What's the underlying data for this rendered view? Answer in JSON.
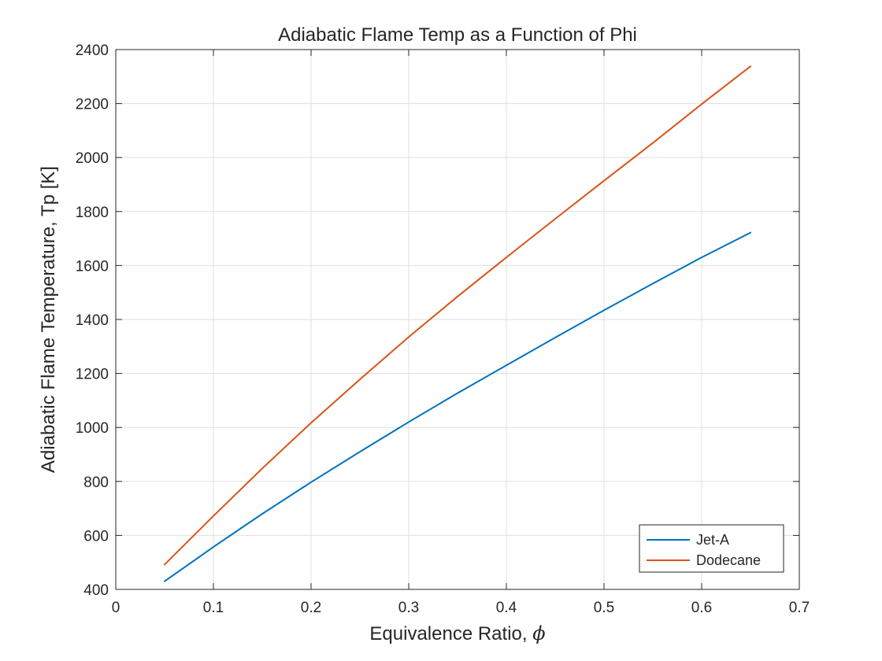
{
  "chart_data": {
    "type": "line",
    "title": "Adiabatic Flame Temp as a Function of Phi",
    "xlabel_prefix": "Equivalence Ratio, ",
    "xlabel_symbol": "ϕ",
    "ylabel": "Adiabatic Flame Temperature, Tp [K]",
    "xlim": [
      0,
      0.7
    ],
    "ylim": [
      400,
      2400
    ],
    "xticks": [
      0,
      0.1,
      0.2,
      0.3,
      0.4,
      0.5,
      0.6,
      0.7
    ],
    "xtick_labels": [
      "0",
      "0.1",
      "0.2",
      "0.3",
      "0.4",
      "0.5",
      "0.6",
      "0.7"
    ],
    "yticks": [
      400,
      600,
      800,
      1000,
      1200,
      1400,
      1600,
      1800,
      2000,
      2200,
      2400
    ],
    "ytick_labels": [
      "400",
      "600",
      "800",
      "1000",
      "1200",
      "1400",
      "1600",
      "1800",
      "2000",
      "2200",
      "2400"
    ],
    "grid": true,
    "legend_position": "bottom-right",
    "series": [
      {
        "name": "Jet-A",
        "color": "#0072BD",
        "x": [
          0.05,
          0.1,
          0.15,
          0.2,
          0.25,
          0.3,
          0.35,
          0.4,
          0.45,
          0.5,
          0.55,
          0.6,
          0.65
        ],
        "y": [
          430,
          557,
          680,
          797,
          910,
          1020,
          1127,
          1230,
          1333,
          1434,
          1533,
          1630,
          1722
        ]
      },
      {
        "name": "Dodecane",
        "color": "#D95319",
        "x": [
          0.05,
          0.1,
          0.15,
          0.2,
          0.25,
          0.3,
          0.35,
          0.4,
          0.45,
          0.5,
          0.55,
          0.6,
          0.65
        ],
        "y": [
          492,
          672,
          848,
          1017,
          1178,
          1335,
          1485,
          1630,
          1773,
          1914,
          2054,
          2198,
          2338
        ]
      }
    ]
  }
}
